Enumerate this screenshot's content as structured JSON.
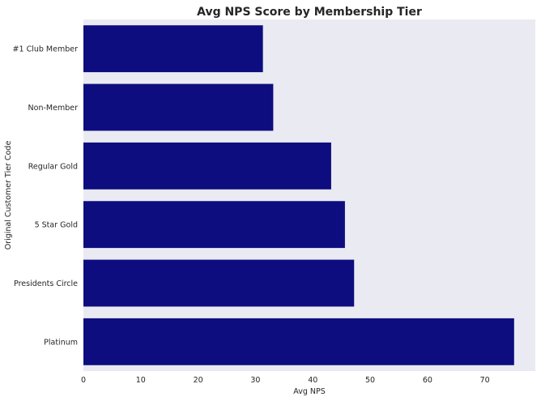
{
  "chart_data": {
    "type": "bar",
    "orientation": "horizontal",
    "title": "Avg NPS Score by Membership Tier",
    "xlabel": "Avg NPS",
    "ylabel": "Original Customer Tier Code",
    "categories": [
      "#1 Club Member",
      "Non-Member",
      "Regular Gold",
      "5 Star Gold",
      "Presidents Circle",
      "Platinum"
    ],
    "values": [
      31.3,
      33.1,
      43.2,
      45.6,
      47.2,
      75.1
    ],
    "xlim": [
      0,
      78.8
    ],
    "xticks": [
      0,
      10,
      20,
      30,
      40,
      50,
      60,
      70
    ],
    "grid": false,
    "bar_color": "#0d0d80",
    "plot_background": "#eaeaf2"
  }
}
